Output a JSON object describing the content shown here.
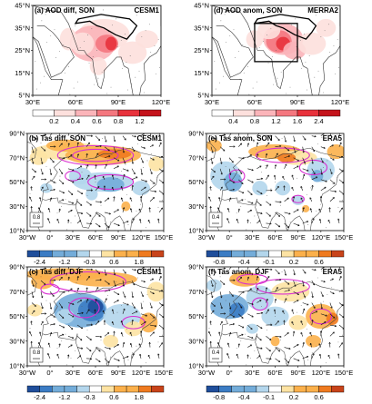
{
  "colors": {
    "aod": [
      "#ffffff",
      "#fde0dd",
      "#fbb4b9",
      "#f4777f",
      "#e8323c",
      "#c4131b"
    ],
    "div": [
      "#1f4e9b",
      "#3b7cc4",
      "#73acd9",
      "#b3d6ec",
      "#ffffff",
      "#fde3a3",
      "#fbb04b",
      "#ef7a1f",
      "#c8431a"
    ],
    "contour": "#d92fd1",
    "box": "#000000"
  },
  "chart_data": [
    {
      "id": "a",
      "type": "heatmap",
      "title": "(a) AOD diff, SON",
      "model": "CESM1",
      "region": "south-asia",
      "lon_range": [
        30,
        120
      ],
      "lat_range": [
        5,
        45
      ],
      "xticks": [
        "30°E",
        "60°E",
        "90°E",
        "120°E"
      ],
      "yticks": [
        "45°N",
        "35°N",
        "25°N",
        "15°N",
        "5°N"
      ],
      "colorbar": [
        "0.2",
        "0.4",
        "0.6",
        "0.8",
        "1.2"
      ],
      "has_box": false,
      "has_vectors": false
    },
    {
      "id": "d",
      "type": "heatmap",
      "title": "(d) AOD anom, SON",
      "model": "MERRA2",
      "region": "south-asia",
      "lon_range": [
        30,
        120
      ],
      "lat_range": [
        5,
        45
      ],
      "xticks": [
        "30°E",
        "60°E",
        "90°E",
        "120°E"
      ],
      "yticks": [
        "45°N",
        "35°N",
        "25°N",
        "15°N",
        "5°N"
      ],
      "colorbar": [
        "0.4",
        "0.8",
        "1.2",
        "1.6",
        "2.4"
      ],
      "has_box": true,
      "has_vectors": false
    },
    {
      "id": "b",
      "type": "heatmap",
      "title": "(b) Tas diff, SON",
      "model": "CESM1",
      "region": "eurasia",
      "lon_range": [
        -30,
        150
      ],
      "lat_range": [
        10,
        90
      ],
      "xticks": [
        "30°W",
        "0°",
        "30°E",
        "60°E",
        "90°E",
        "120°E",
        "150°E"
      ],
      "yticks": [
        "90°N",
        "70°N",
        "50°N",
        "30°N",
        "10°N"
      ],
      "colorbar": [
        "-2.4",
        "-1.2",
        "-0.3",
        "0.6",
        "1.8"
      ],
      "ref_vector": "0.8",
      "has_vectors": true
    },
    {
      "id": "e",
      "type": "heatmap",
      "title": "(e) Tas anom, SON",
      "model": "ERA5",
      "region": "eurasia",
      "lon_range": [
        -30,
        150
      ],
      "lat_range": [
        10,
        90
      ],
      "xticks": [
        "30°W",
        "0°",
        "30°E",
        "60°E",
        "90°E",
        "120°E",
        "150°E"
      ],
      "yticks": [
        "90°N",
        "70°N",
        "50°N",
        "30°N",
        "10°N"
      ],
      "colorbar": [
        "-0.8",
        "-0.4",
        "-0.1",
        "0.2",
        "0.6"
      ],
      "ref_vector": "0.4",
      "has_vectors": true
    },
    {
      "id": "c",
      "type": "heatmap",
      "title": "(c) Tas diff, DJF",
      "model": "CESM1",
      "region": "eurasia",
      "lon_range": [
        -30,
        150
      ],
      "lat_range": [
        10,
        90
      ],
      "xticks": [
        "30°W",
        "0°",
        "30°E",
        "60°E",
        "90°E",
        "120°E",
        "150°E"
      ],
      "yticks": [
        "90°N",
        "70°N",
        "50°N",
        "30°N",
        "10°N"
      ],
      "colorbar": [
        "-2.4",
        "-1.2",
        "-0.3",
        "0.6",
        "1.8"
      ],
      "ref_vector": "0.8",
      "has_vectors": true
    },
    {
      "id": "f",
      "type": "heatmap",
      "title": "(f) Tas anom, DJF",
      "model": "ERA5",
      "region": "eurasia",
      "lon_range": [
        -30,
        150
      ],
      "lat_range": [
        10,
        90
      ],
      "xticks": [
        "30°W",
        "0°",
        "30°E",
        "60°E",
        "90°E",
        "120°E",
        "150°E"
      ],
      "yticks": [
        "90°N",
        "70°N",
        "50°N",
        "30°N",
        "10°N"
      ],
      "colorbar": [
        "-0.8",
        "-0.4",
        "-0.1",
        "0.2",
        "0.6"
      ],
      "ref_vector": "0.4",
      "has_vectors": true
    }
  ]
}
